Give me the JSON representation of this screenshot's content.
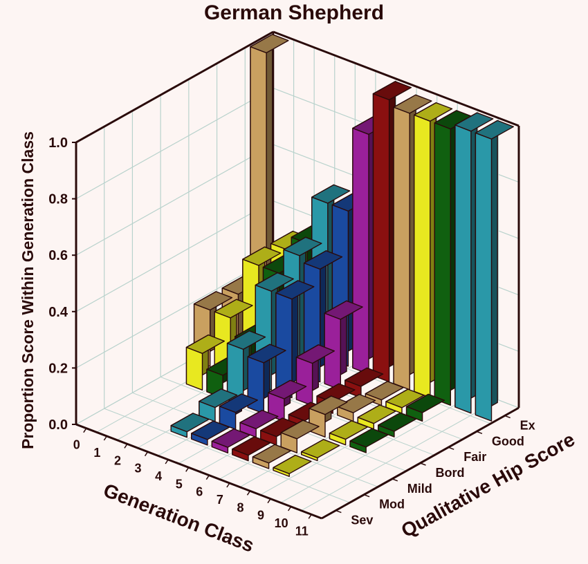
{
  "chart_data": {
    "type": "bar3d",
    "title": "German Shepherd",
    "zlabel": "Proportion Score Within Generation Class",
    "xlabel": "Generation Class",
    "ylabel": "Qualitative Hip Score",
    "z_ticks": [
      "0.0",
      "0.2",
      "0.4",
      "0.6",
      "0.8",
      "1.0"
    ],
    "zlim": [
      0,
      1.0
    ],
    "x_categories": [
      "0",
      "1",
      "2",
      "3",
      "4",
      "5",
      "6",
      "7",
      "8",
      "9",
      "10",
      "11"
    ],
    "y_categories": [
      "Sev",
      "Mod",
      "Mild",
      "Bord",
      "Fair",
      "Good",
      "Ex"
    ],
    "grid": true,
    "colors_by_generation": [
      "#c9a060",
      "#e8e820",
      "#106010",
      "#2a98a8",
      "#1a4aa0",
      "#9a209a",
      "#8a1010",
      "#c9a060",
      "#e8e820",
      "#106010",
      "#2a98a8",
      "#2a98a8"
    ],
    "series": [
      {
        "name": "0",
        "values": [
          0,
          0,
          0,
          0,
          0.2,
          0.2,
          1.0
        ]
      },
      {
        "name": "1",
        "values": [
          0,
          0,
          0,
          0.13,
          0.2,
          0.33,
          0.33
        ]
      },
      {
        "name": "2",
        "values": [
          0,
          0,
          0,
          0.08,
          0.14,
          0.33,
          0.38
        ]
      },
      {
        "name": "3",
        "values": [
          0,
          0.02,
          0.05,
          0.2,
          0.35,
          0.42,
          0.55
        ]
      },
      {
        "name": "4",
        "values": [
          0,
          0.02,
          0.06,
          0.18,
          0.35,
          0.4,
          0.55
        ]
      },
      {
        "name": "5",
        "values": [
          0,
          0.02,
          0.03,
          0.08,
          0.15,
          0.25,
          0.85
        ]
      },
      {
        "name": "6",
        "values": [
          0,
          0.02,
          0.03,
          0.03,
          0.04,
          0.04,
          1.0
        ]
      },
      {
        "name": "7",
        "values": [
          0,
          0.02,
          0.05,
          0.08,
          0.03,
          0.02,
          0.98
        ]
      },
      {
        "name": "8",
        "values": [
          0,
          0.01,
          0.01,
          0.02,
          0.02,
          0.02,
          0.98
        ]
      },
      {
        "name": "9",
        "values": [
          0,
          0,
          0,
          0.02,
          0.02,
          0.03,
          0.98
        ]
      },
      {
        "name": "10",
        "values": [
          0,
          0,
          0,
          0,
          0,
          0,
          1.0
        ]
      },
      {
        "name": "11",
        "values": [
          0,
          0,
          0,
          0,
          0,
          0,
          1.0
        ]
      }
    ]
  }
}
